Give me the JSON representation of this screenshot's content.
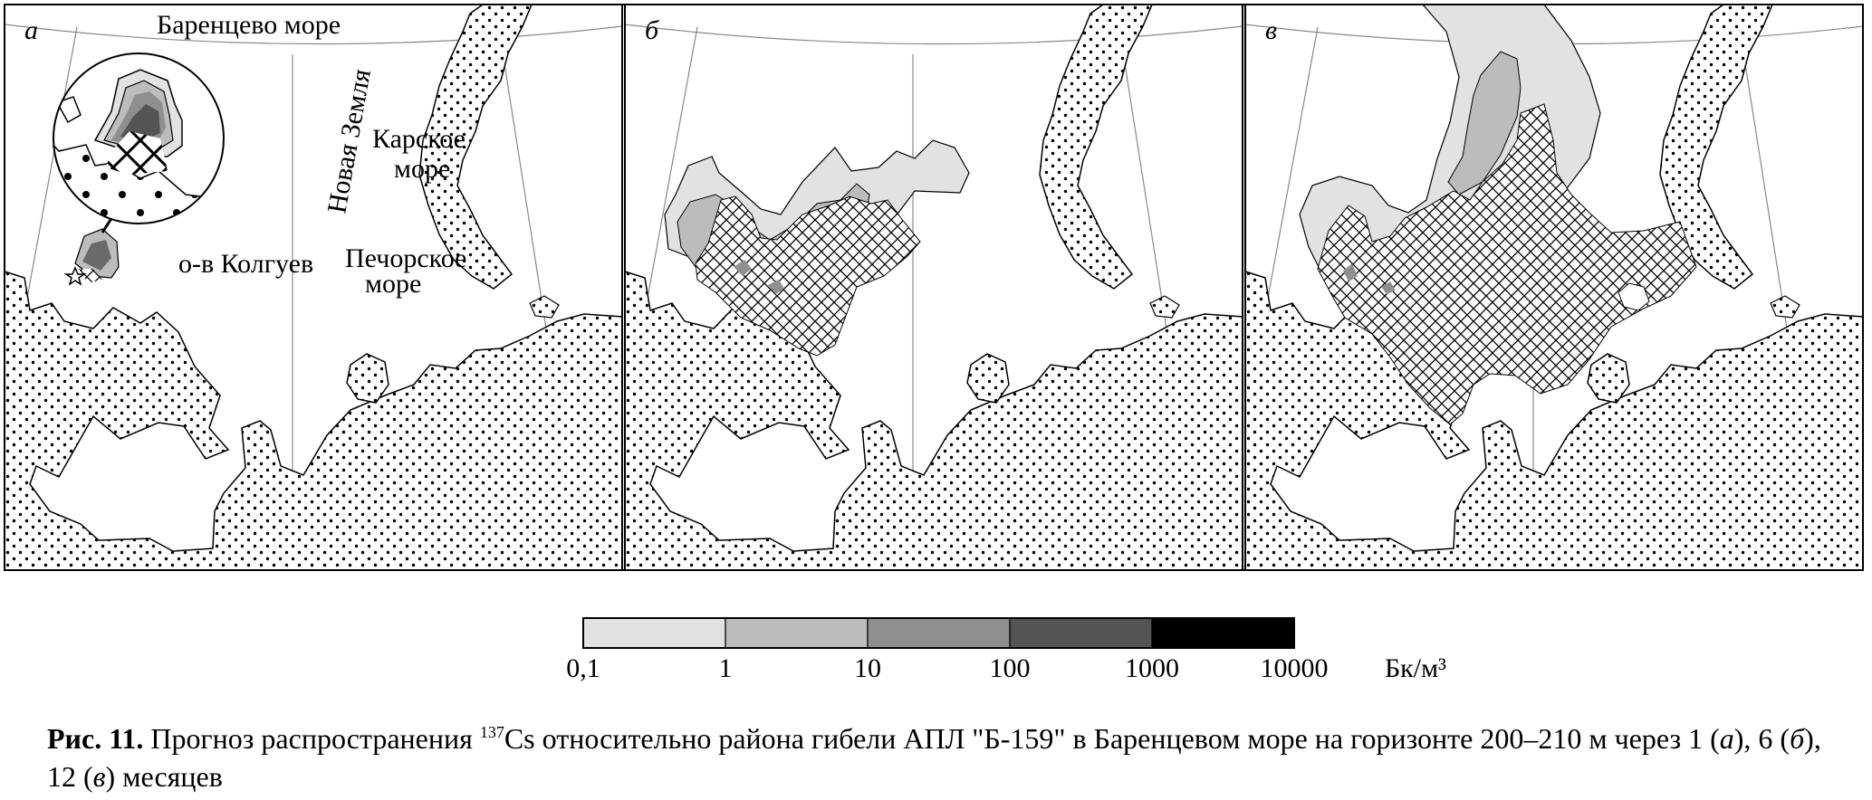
{
  "panels": [
    {
      "letter": "а",
      "labels": {
        "barents": "Баренцево море",
        "novaya": "Новая Земля",
        "kara_line1": "Карское",
        "kara_line2": "море",
        "kolguev": "о-в Колгуев",
        "pechora_line1": "Печорское",
        "pechora_line2": "море"
      }
    },
    {
      "letter": "б"
    },
    {
      "letter": "в"
    }
  ],
  "legend": {
    "colors": [
      "#e2e2e2",
      "#bcbcbc",
      "#8f8f8f",
      "#545454",
      "#000000"
    ],
    "ticks": [
      "0,1",
      "1",
      "10",
      "100",
      "1000",
      "10000"
    ],
    "unit": "Бк/м³",
    "land_pattern": "dots",
    "hatch_pattern": "cross-hatch"
  },
  "caption": {
    "fig": "Рис. 11.",
    "text_before_sup": "Прогноз распространения",
    "sup": "137",
    "text_after_sup": "Cs относительно района гибели АПЛ \"Б-159\" в Баренцевом море на горизонте 200–210 м через 1 (",
    "p1": "а",
    "mid1": "), 6 (",
    "p2": "б",
    "mid2": "), 12 (",
    "p3": "в",
    "end": ") месяцев"
  }
}
